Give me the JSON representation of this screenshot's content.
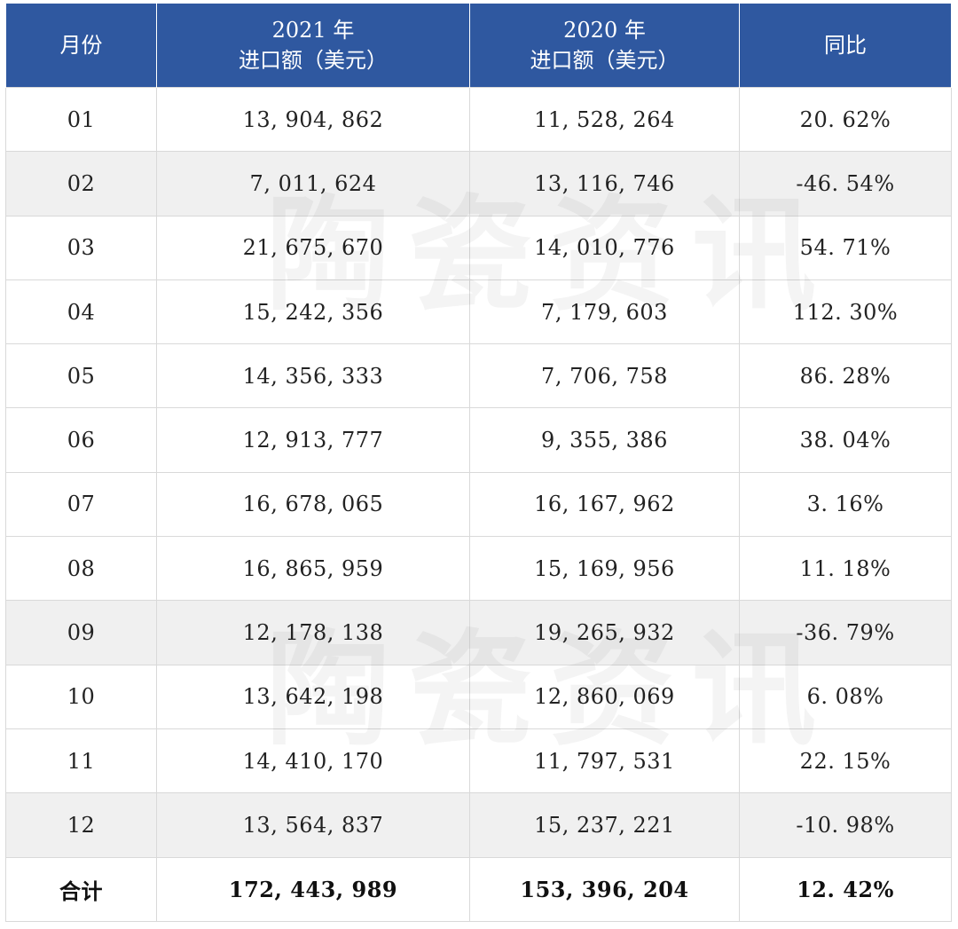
{
  "header": {
    "col1": "月份",
    "col2_line1": "2021 年",
    "col2_line2": "进口额（美元）",
    "col3_line1": "2020 年",
    "col3_line2": "进口额（美元）",
    "col4": "同比"
  },
  "rows": [
    {
      "month": "01",
      "y2021": "13, 904, 862",
      "y2020": "11, 528, 264",
      "yoy": "20. 62%"
    },
    {
      "month": "02",
      "y2021": "7, 011, 624",
      "y2020": "13, 116, 746",
      "yoy": "-46. 54%"
    },
    {
      "month": "03",
      "y2021": "21, 675, 670",
      "y2020": "14, 010, 776",
      "yoy": "54. 71%"
    },
    {
      "month": "04",
      "y2021": "15, 242, 356",
      "y2020": "7, 179, 603",
      "yoy": "112. 30%"
    },
    {
      "month": "05",
      "y2021": "14, 356, 333",
      "y2020": "7, 706, 758",
      "yoy": "86. 28%"
    },
    {
      "month": "06",
      "y2021": "12, 913, 777",
      "y2020": "9, 355, 386",
      "yoy": "38. 04%"
    },
    {
      "month": "07",
      "y2021": "16, 678, 065",
      "y2020": "16, 167, 962",
      "yoy": "3. 16%"
    },
    {
      "month": "08",
      "y2021": "16, 865, 959",
      "y2020": "15, 169, 956",
      "yoy": "11. 18%"
    },
    {
      "month": "09",
      "y2021": "12, 178, 138",
      "y2020": "19, 265, 932",
      "yoy": "-36. 79%"
    },
    {
      "month": "10",
      "y2021": "13, 642, 198",
      "y2020": "12, 860, 069",
      "yoy": "6. 08%"
    },
    {
      "month": "11",
      "y2021": "14, 410, 170",
      "y2020": "11, 797, 531",
      "yoy": "22. 15%"
    },
    {
      "month": "12",
      "y2021": "13, 564, 837",
      "y2020": "15, 237, 221",
      "yoy": "-10. 98%"
    }
  ],
  "total": {
    "label": "合计",
    "y2021": "172, 443, 989",
    "y2020": "153, 396, 204",
    "yoy": "12. 42%"
  },
  "watermark": {
    "text": "陶瓷资讯"
  },
  "colors": {
    "header_bg": "#2f58a0",
    "shaded_row": "#f0f0f0"
  }
}
